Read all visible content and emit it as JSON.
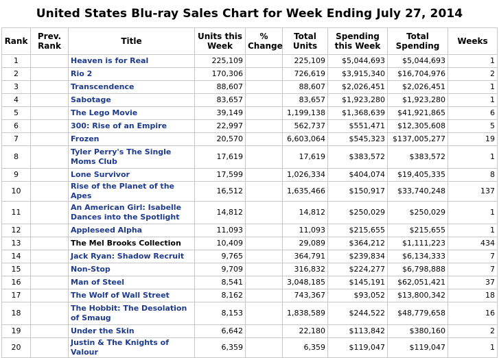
{
  "title": "United States Blu-ray Sales Chart for Week Ending July 27, 2014",
  "columns": {
    "rank": "Rank",
    "prev_rank": "Prev. Rank",
    "title": "Title",
    "units_week": "Units this Week",
    "pct_change": "% Change",
    "total_units": "Total Units",
    "spending_week": "Spending this Week",
    "total_spending": "Total Spending",
    "weeks": "Weeks"
  },
  "rows": [
    {
      "rank": "1",
      "prev": "",
      "title": "Heaven is for Real",
      "link": true,
      "units": "225,109",
      "change": "",
      "total_units": "225,109",
      "spending": "$5,044,693",
      "total_spending": "$5,044,693",
      "weeks": "1"
    },
    {
      "rank": "2",
      "prev": "",
      "title": "Rio 2",
      "link": true,
      "units": "170,306",
      "change": "",
      "total_units": "726,619",
      "spending": "$3,915,340",
      "total_spending": "$16,704,976",
      "weeks": "2"
    },
    {
      "rank": "3",
      "prev": "",
      "title": "Transcendence",
      "link": true,
      "units": "88,607",
      "change": "",
      "total_units": "88,607",
      "spending": "$2,026,451",
      "total_spending": "$2,026,451",
      "weeks": "1"
    },
    {
      "rank": "4",
      "prev": "",
      "title": "Sabotage",
      "link": true,
      "units": "83,657",
      "change": "",
      "total_units": "83,657",
      "spending": "$1,923,280",
      "total_spending": "$1,923,280",
      "weeks": "1"
    },
    {
      "rank": "5",
      "prev": "",
      "title": "The Lego Movie",
      "link": true,
      "units": "39,149",
      "change": "",
      "total_units": "1,199,138",
      "spending": "$1,368,639",
      "total_spending": "$41,921,865",
      "weeks": "6"
    },
    {
      "rank": "6",
      "prev": "",
      "title": "300: Rise of an Empire",
      "link": true,
      "units": "22,997",
      "change": "",
      "total_units": "562,737",
      "spending": "$551,471",
      "total_spending": "$12,305,608",
      "weeks": "5"
    },
    {
      "rank": "7",
      "prev": "",
      "title": "Frozen",
      "link": true,
      "units": "20,570",
      "change": "",
      "total_units": "6,603,064",
      "spending": "$545,323",
      "total_spending": "$137,005,277",
      "weeks": "19"
    },
    {
      "rank": "8",
      "prev": "",
      "title": "Tyler Perry's The Single Moms Club",
      "link": true,
      "units": "17,619",
      "change": "",
      "total_units": "17,619",
      "spending": "$383,572",
      "total_spending": "$383,572",
      "weeks": "1",
      "tall": true
    },
    {
      "rank": "9",
      "prev": "",
      "title": "Lone Survivor",
      "link": true,
      "units": "17,599",
      "change": "",
      "total_units": "1,026,334",
      "spending": "$404,074",
      "total_spending": "$19,405,335",
      "weeks": "8"
    },
    {
      "rank": "10",
      "prev": "",
      "title": "Rise of the Planet of the Apes",
      "link": true,
      "units": "16,512",
      "change": "",
      "total_units": "1,635,466",
      "spending": "$150,917",
      "total_spending": "$33,740,248",
      "weeks": "137"
    },
    {
      "rank": "11",
      "prev": "",
      "title": "An American Girl: Isabelle Dances into the Spotlight",
      "link": true,
      "units": "14,812",
      "change": "",
      "total_units": "14,812",
      "spending": "$250,029",
      "total_spending": "$250,029",
      "weeks": "1",
      "tall": true
    },
    {
      "rank": "12",
      "prev": "",
      "title": "Appleseed Alpha",
      "link": true,
      "units": "11,093",
      "change": "",
      "total_units": "11,093",
      "spending": "$215,655",
      "total_spending": "$215,655",
      "weeks": "1"
    },
    {
      "rank": "13",
      "prev": "",
      "title": "The Mel Brooks Collection",
      "link": false,
      "units": "10,409",
      "change": "",
      "total_units": "29,089",
      "spending": "$364,212",
      "total_spending": "$1,111,223",
      "weeks": "434"
    },
    {
      "rank": "14",
      "prev": "",
      "title": "Jack Ryan: Shadow Recruit",
      "link": true,
      "units": "9,765",
      "change": "",
      "total_units": "364,791",
      "spending": "$239,834",
      "total_spending": "$6,134,333",
      "weeks": "7"
    },
    {
      "rank": "15",
      "prev": "",
      "title": "Non-Stop",
      "link": true,
      "units": "9,709",
      "change": "",
      "total_units": "316,832",
      "spending": "$224,277",
      "total_spending": "$6,798,888",
      "weeks": "7"
    },
    {
      "rank": "16",
      "prev": "",
      "title": "Man of Steel",
      "link": true,
      "units": "8,541",
      "change": "",
      "total_units": "3,048,185",
      "spending": "$145,191",
      "total_spending": "$62,051,421",
      "weeks": "37"
    },
    {
      "rank": "17",
      "prev": "",
      "title": "The Wolf of Wall Street",
      "link": true,
      "units": "8,162",
      "change": "",
      "total_units": "743,367",
      "spending": "$93,052",
      "total_spending": "$13,800,342",
      "weeks": "18"
    },
    {
      "rank": "18",
      "prev": "",
      "title": "The Hobbit: The Desolation of Smaug",
      "link": true,
      "units": "8,153",
      "change": "",
      "total_units": "1,838,589",
      "spending": "$244,522",
      "total_spending": "$48,779,658",
      "weeks": "16",
      "tall": true
    },
    {
      "rank": "19",
      "prev": "",
      "title": "Under the Skin",
      "link": true,
      "units": "6,642",
      "change": "",
      "total_units": "22,180",
      "spending": "$113,842",
      "total_spending": "$380,160",
      "weeks": "2"
    },
    {
      "rank": "20",
      "prev": "",
      "title": "Justin & The Knights of Valour",
      "link": true,
      "units": "6,359",
      "change": "",
      "total_units": "6,359",
      "spending": "$119,047",
      "total_spending": "$119,047",
      "weeks": "1"
    }
  ],
  "colors": {
    "link": "#1e3a8a",
    "border": "#c8c8c8"
  }
}
